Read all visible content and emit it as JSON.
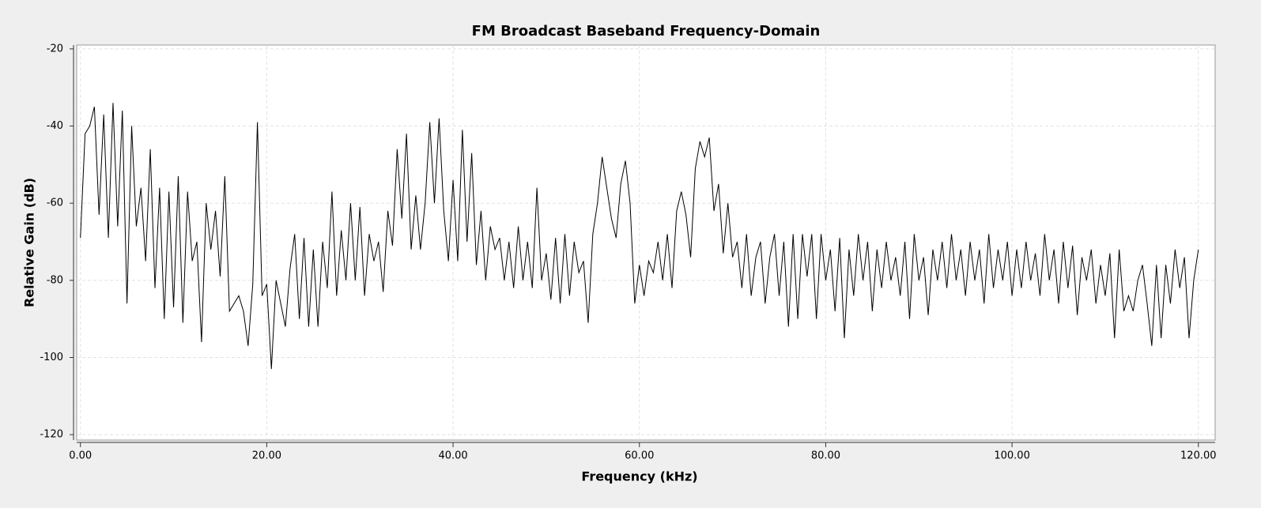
{
  "chart_data": {
    "type": "line",
    "title": "FM Broadcast Baseband Frequency-Domain",
    "xlabel": "Frequency (kHz)",
    "ylabel": "Relative Gain (dB)",
    "color": "#000000",
    "grid": true,
    "xlim": [
      -0.4,
      121.8
    ],
    "ylim": [
      -121.4,
      -19
    ],
    "xticks": [
      {
        "value": 0,
        "label": "0.00"
      },
      {
        "value": 20,
        "label": "20.00"
      },
      {
        "value": 40,
        "label": "40.00"
      },
      {
        "value": 60,
        "label": "60.00"
      },
      {
        "value": 80,
        "label": "80.00"
      },
      {
        "value": 100,
        "label": "100.00"
      },
      {
        "value": 120,
        "label": "120.00"
      }
    ],
    "yticks": [
      -20,
      -40,
      -60,
      -80,
      -100,
      -120
    ],
    "x": [
      0,
      0.5,
      1,
      1.5,
      2,
      2.5,
      3,
      3.5,
      4,
      4.5,
      5,
      5.5,
      6,
      6.5,
      7,
      7.5,
      8,
      8.5,
      9,
      9.5,
      10,
      10.5,
      11,
      11.5,
      12,
      12.5,
      13,
      13.5,
      14,
      14.5,
      15,
      15.5,
      16,
      16.5,
      17,
      17.5,
      18,
      18.5,
      19,
      19.5,
      20,
      20.5,
      21,
      21.5,
      22,
      22.5,
      23,
      23.5,
      24,
      24.5,
      25,
      25.5,
      26,
      26.5,
      27,
      27.5,
      28,
      28.5,
      29,
      29.5,
      30,
      30.5,
      31,
      31.5,
      32,
      32.5,
      33,
      33.5,
      34,
      34.5,
      35,
      35.5,
      36,
      36.5,
      37,
      37.5,
      38,
      38.5,
      39,
      39.5,
      40,
      40.5,
      41,
      41.5,
      42,
      42.5,
      43,
      43.5,
      44,
      44.5,
      45,
      45.5,
      46,
      46.5,
      47,
      47.5,
      48,
      48.5,
      49,
      49.5,
      50,
      50.5,
      51,
      51.5,
      52,
      52.5,
      53,
      53.5,
      54,
      54.5,
      55,
      55.5,
      56,
      56.5,
      57,
      57.5,
      58,
      58.5,
      59,
      59.5,
      60,
      60.5,
      61,
      61.5,
      62,
      62.5,
      63,
      63.5,
      64,
      64.5,
      65,
      65.5,
      66,
      66.5,
      67,
      67.5,
      68,
      68.5,
      69,
      69.5,
      70,
      70.5,
      71,
      71.5,
      72,
      72.5,
      73,
      73.5,
      74,
      74.5,
      75,
      75.5,
      76,
      76.5,
      77,
      77.5,
      78,
      78.5,
      79,
      79.5,
      80,
      80.5,
      81,
      81.5,
      82,
      82.5,
      83,
      83.5,
      84,
      84.5,
      85,
      85.5,
      86,
      86.5,
      87,
      87.5,
      88,
      88.5,
      89,
      89.5,
      90,
      90.5,
      91,
      91.5,
      92,
      92.5,
      93,
      93.5,
      94,
      94.5,
      95,
      95.5,
      96,
      96.5,
      97,
      97.5,
      98,
      98.5,
      99,
      99.5,
      100,
      100.5,
      101,
      101.5,
      102,
      102.5,
      103,
      103.5,
      104,
      104.5,
      105,
      105.5,
      106,
      106.5,
      107,
      107.5,
      108,
      108.5,
      109,
      109.5,
      110,
      110.5,
      111,
      111.5,
      112,
      112.5,
      113,
      113.5,
      114,
      114.5,
      115,
      115.5,
      116,
      116.5,
      117,
      117.5,
      118,
      118.5,
      119,
      119.5,
      120
    ],
    "values": [
      -69,
      -42,
      -40,
      -35,
      -63,
      -37,
      -69,
      -34,
      -66,
      -36,
      -86,
      -40,
      -66,
      -56,
      -75,
      -46,
      -82,
      -56,
      -90,
      -57,
      -87,
      -53,
      -91,
      -57,
      -75,
      -70,
      -96,
      -60,
      -72,
      -62,
      -79,
      -53,
      -88,
      -86,
      -84,
      -88,
      -97,
      -81,
      -39,
      -84,
      -81,
      -103,
      -80,
      -86,
      -92,
      -77,
      -68,
      -90,
      -69,
      -92,
      -72,
      -92,
      -70,
      -82,
      -57,
      -84,
      -67,
      -80,
      -60,
      -80,
      -61,
      -84,
      -68,
      -75,
      -70,
      -83,
      -62,
      -71,
      -46,
      -64,
      -42,
      -72,
      -58,
      -72,
      -60,
      -39,
      -60,
      -38,
      -62,
      -75,
      -54,
      -75,
      -41,
      -70,
      -47,
      -76,
      -62,
      -80,
      -66,
      -72,
      -69,
      -80,
      -70,
      -82,
      -66,
      -80,
      -70,
      -82,
      -56,
      -80,
      -73,
      -85,
      -69,
      -86,
      -68,
      -84,
      -70,
      -78,
      -75,
      -91,
      -68,
      -60,
      -48,
      -56,
      -64,
      -69,
      -55,
      -49,
      -60,
      -86,
      -76,
      -84,
      -75,
      -78,
      -70,
      -80,
      -68,
      -82,
      -62,
      -57,
      -63,
      -74,
      -51,
      -44,
      -48,
      -43,
      -62,
      -55,
      -73,
      -60,
      -74,
      -70,
      -82,
      -68,
      -84,
      -74,
      -70,
      -86,
      -74,
      -68,
      -84,
      -70,
      -92,
      -68,
      -90,
      -68,
      -79,
      -68,
      -90,
      -68,
      -80,
      -72,
      -88,
      -69,
      -95,
      -72,
      -84,
      -68,
      -80,
      -70,
      -88,
      -72,
      -82,
      -70,
      -80,
      -74,
      -84,
      -70,
      -90,
      -68,
      -80,
      -74,
      -89,
      -72,
      -80,
      -70,
      -82,
      -68,
      -80,
      -72,
      -84,
      -70,
      -80,
      -72,
      -86,
      -68,
      -82,
      -72,
      -80,
      -70,
      -84,
      -72,
      -82,
      -70,
      -80,
      -73,
      -84,
      -68,
      -80,
      -72,
      -86,
      -70,
      -82,
      -71,
      -89,
      -74,
      -80,
      -72,
      -86,
      -76,
      -84,
      -73,
      -95,
      -72,
      -88,
      -84,
      -88,
      -80,
      -76,
      -86,
      -97,
      -76,
      -95,
      -76,
      -86,
      -72,
      -82,
      -74,
      -95,
      -80,
      -72
    ]
  }
}
